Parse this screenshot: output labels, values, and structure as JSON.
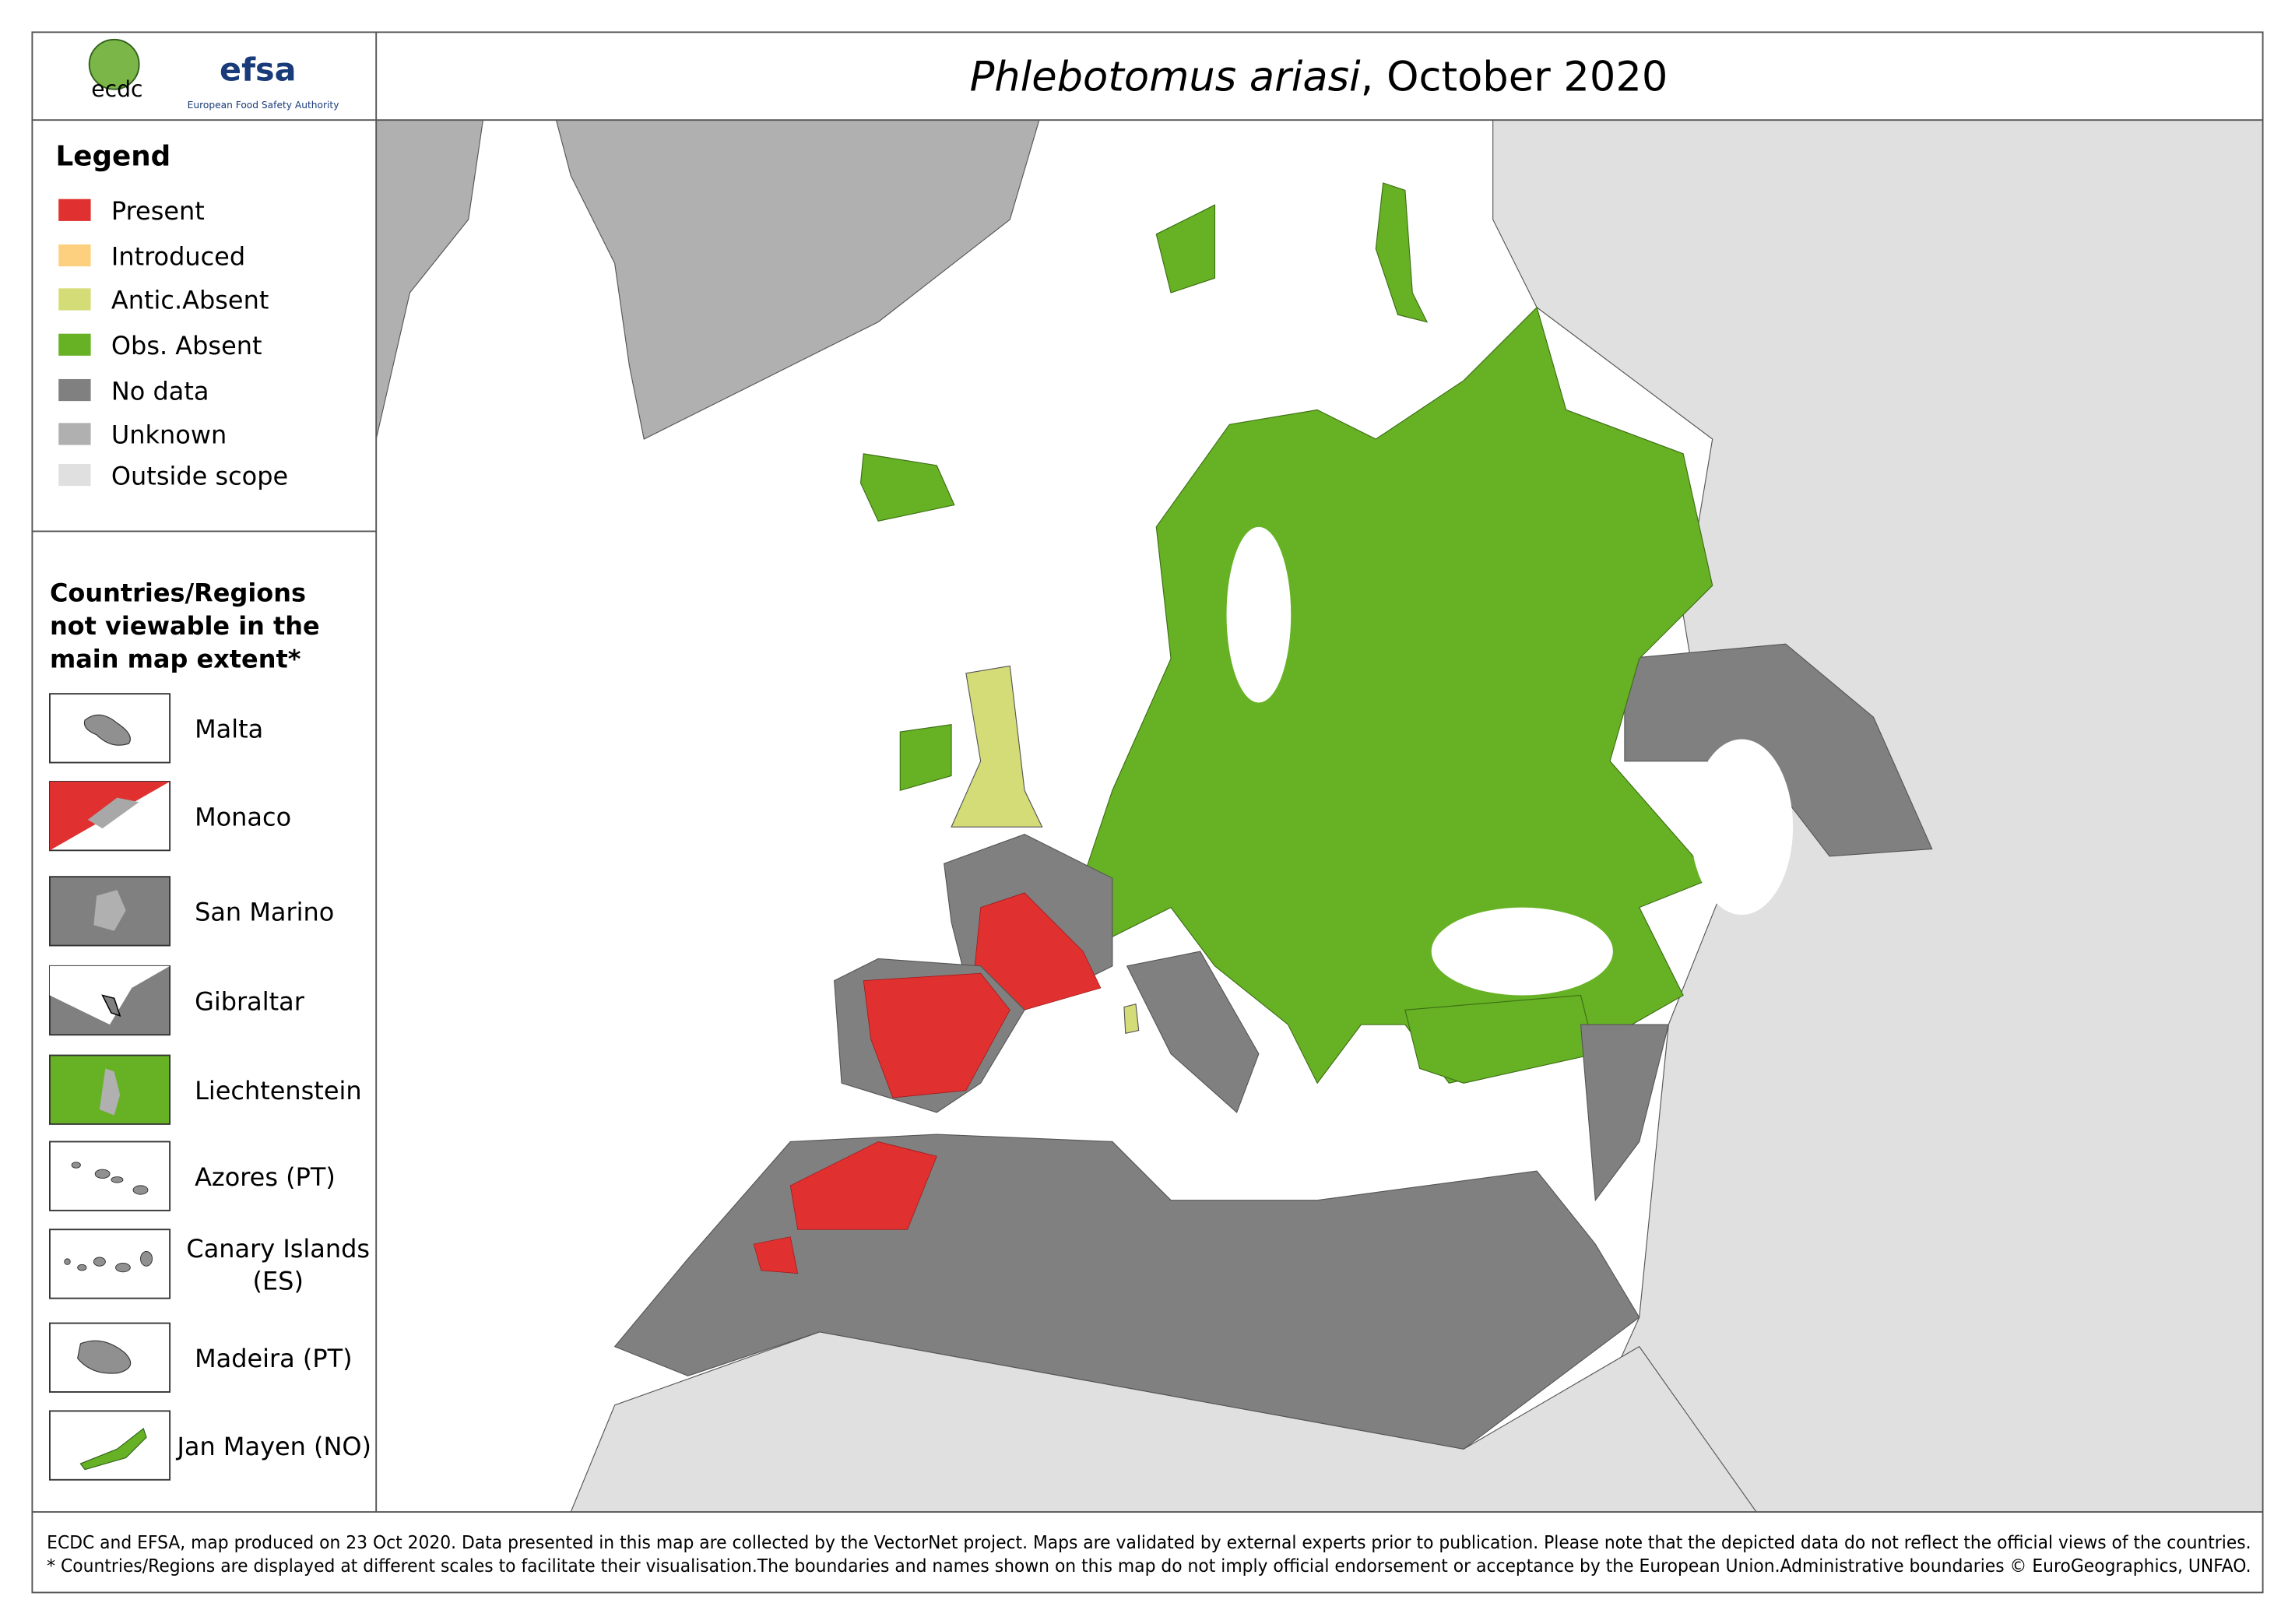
{
  "header": {
    "logos": [
      "ecdc",
      "efsa",
      "European Food Safety Authority"
    ],
    "title_species": "Phlebotomus ariasi",
    "title_rest": ", October 2020"
  },
  "legend": {
    "title": "Legend",
    "items": [
      {
        "label": "Present",
        "color": "#e03030"
      },
      {
        "label": "Introduced",
        "color": "#fdd080"
      },
      {
        "label": "Antic.Absent",
        "color": "#d4dc78"
      },
      {
        "label": "Obs. Absent",
        "color": "#66b224"
      },
      {
        "label": "No data",
        "color": "#808080"
      },
      {
        "label": "Unknown",
        "color": "#b0b0b0"
      },
      {
        "label": "Outside scope",
        "color": "#e0e0e0"
      }
    ]
  },
  "insets": {
    "title": [
      "Countries/Regions",
      "not viewable in the",
      "main map extent*"
    ],
    "items": [
      [
        "Malta"
      ],
      [
        "Monaco"
      ],
      [
        "San Marino"
      ],
      [
        "Gibraltar"
      ],
      [
        "Liechtenstein"
      ],
      [
        "Azores (PT)"
      ],
      [
        "Canary Islands",
        "(ES)"
      ],
      [
        "Madeira (PT)"
      ],
      [
        "Jan Mayen (NO)"
      ]
    ]
  },
  "footer": {
    "lines": [
      "ECDC and EFSA, map produced on 23 Oct 2020. Data presented in this map are collected by the VectorNet project. Maps are validated by external experts prior to publication. Please note that the depicted data do not reflect the official views of the countries.",
      "* Countries/Regions are displayed at different scales to facilitate their visualisation.The boundaries and names shown on this map do not imply official endorsement or acceptance by the European Union.Administrative boundaries © EuroGeographics, UNFAO."
    ]
  }
}
